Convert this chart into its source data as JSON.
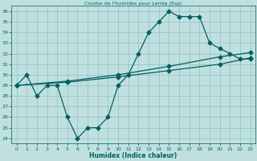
{
  "title": "Courbe de l'humidex pour Lerida (Esp)",
  "xlabel": "Humidex (Indice chaleur)",
  "bg_color": "#c0e0e0",
  "grid_color": "#90c0c0",
  "line_color": "#006060",
  "xlim": [
    -0.5,
    23.5
  ],
  "ylim": [
    23.5,
    36.5
  ],
  "yticks": [
    24,
    25,
    26,
    27,
    28,
    29,
    30,
    31,
    32,
    33,
    34,
    35,
    36
  ],
  "xticks": [
    0,
    1,
    2,
    3,
    4,
    5,
    6,
    7,
    8,
    9,
    10,
    11,
    12,
    13,
    14,
    15,
    16,
    17,
    18,
    19,
    20,
    21,
    22,
    23
  ],
  "line1_x": [
    0,
    1,
    2,
    3,
    4,
    5,
    6,
    7,
    8,
    9,
    10,
    11,
    12,
    13,
    14,
    15,
    16,
    17,
    18,
    19,
    20,
    21,
    22,
    23
  ],
  "line1_y": [
    29,
    30,
    28,
    29,
    29,
    26,
    24,
    25,
    25,
    26,
    29,
    30,
    32,
    34,
    35,
    36,
    35.5,
    35.5,
    35.5,
    33,
    32.5,
    32,
    31.5,
    31.5
  ],
  "line2_x": [
    0,
    5,
    10,
    15,
    20,
    23
  ],
  "line2_y": [
    29,
    29.4,
    30.0,
    30.8,
    31.7,
    32.1
  ],
  "line3_x": [
    0,
    5,
    10,
    15,
    20,
    23
  ],
  "line3_y": [
    29,
    29.3,
    29.8,
    30.4,
    31.0,
    31.6
  ]
}
